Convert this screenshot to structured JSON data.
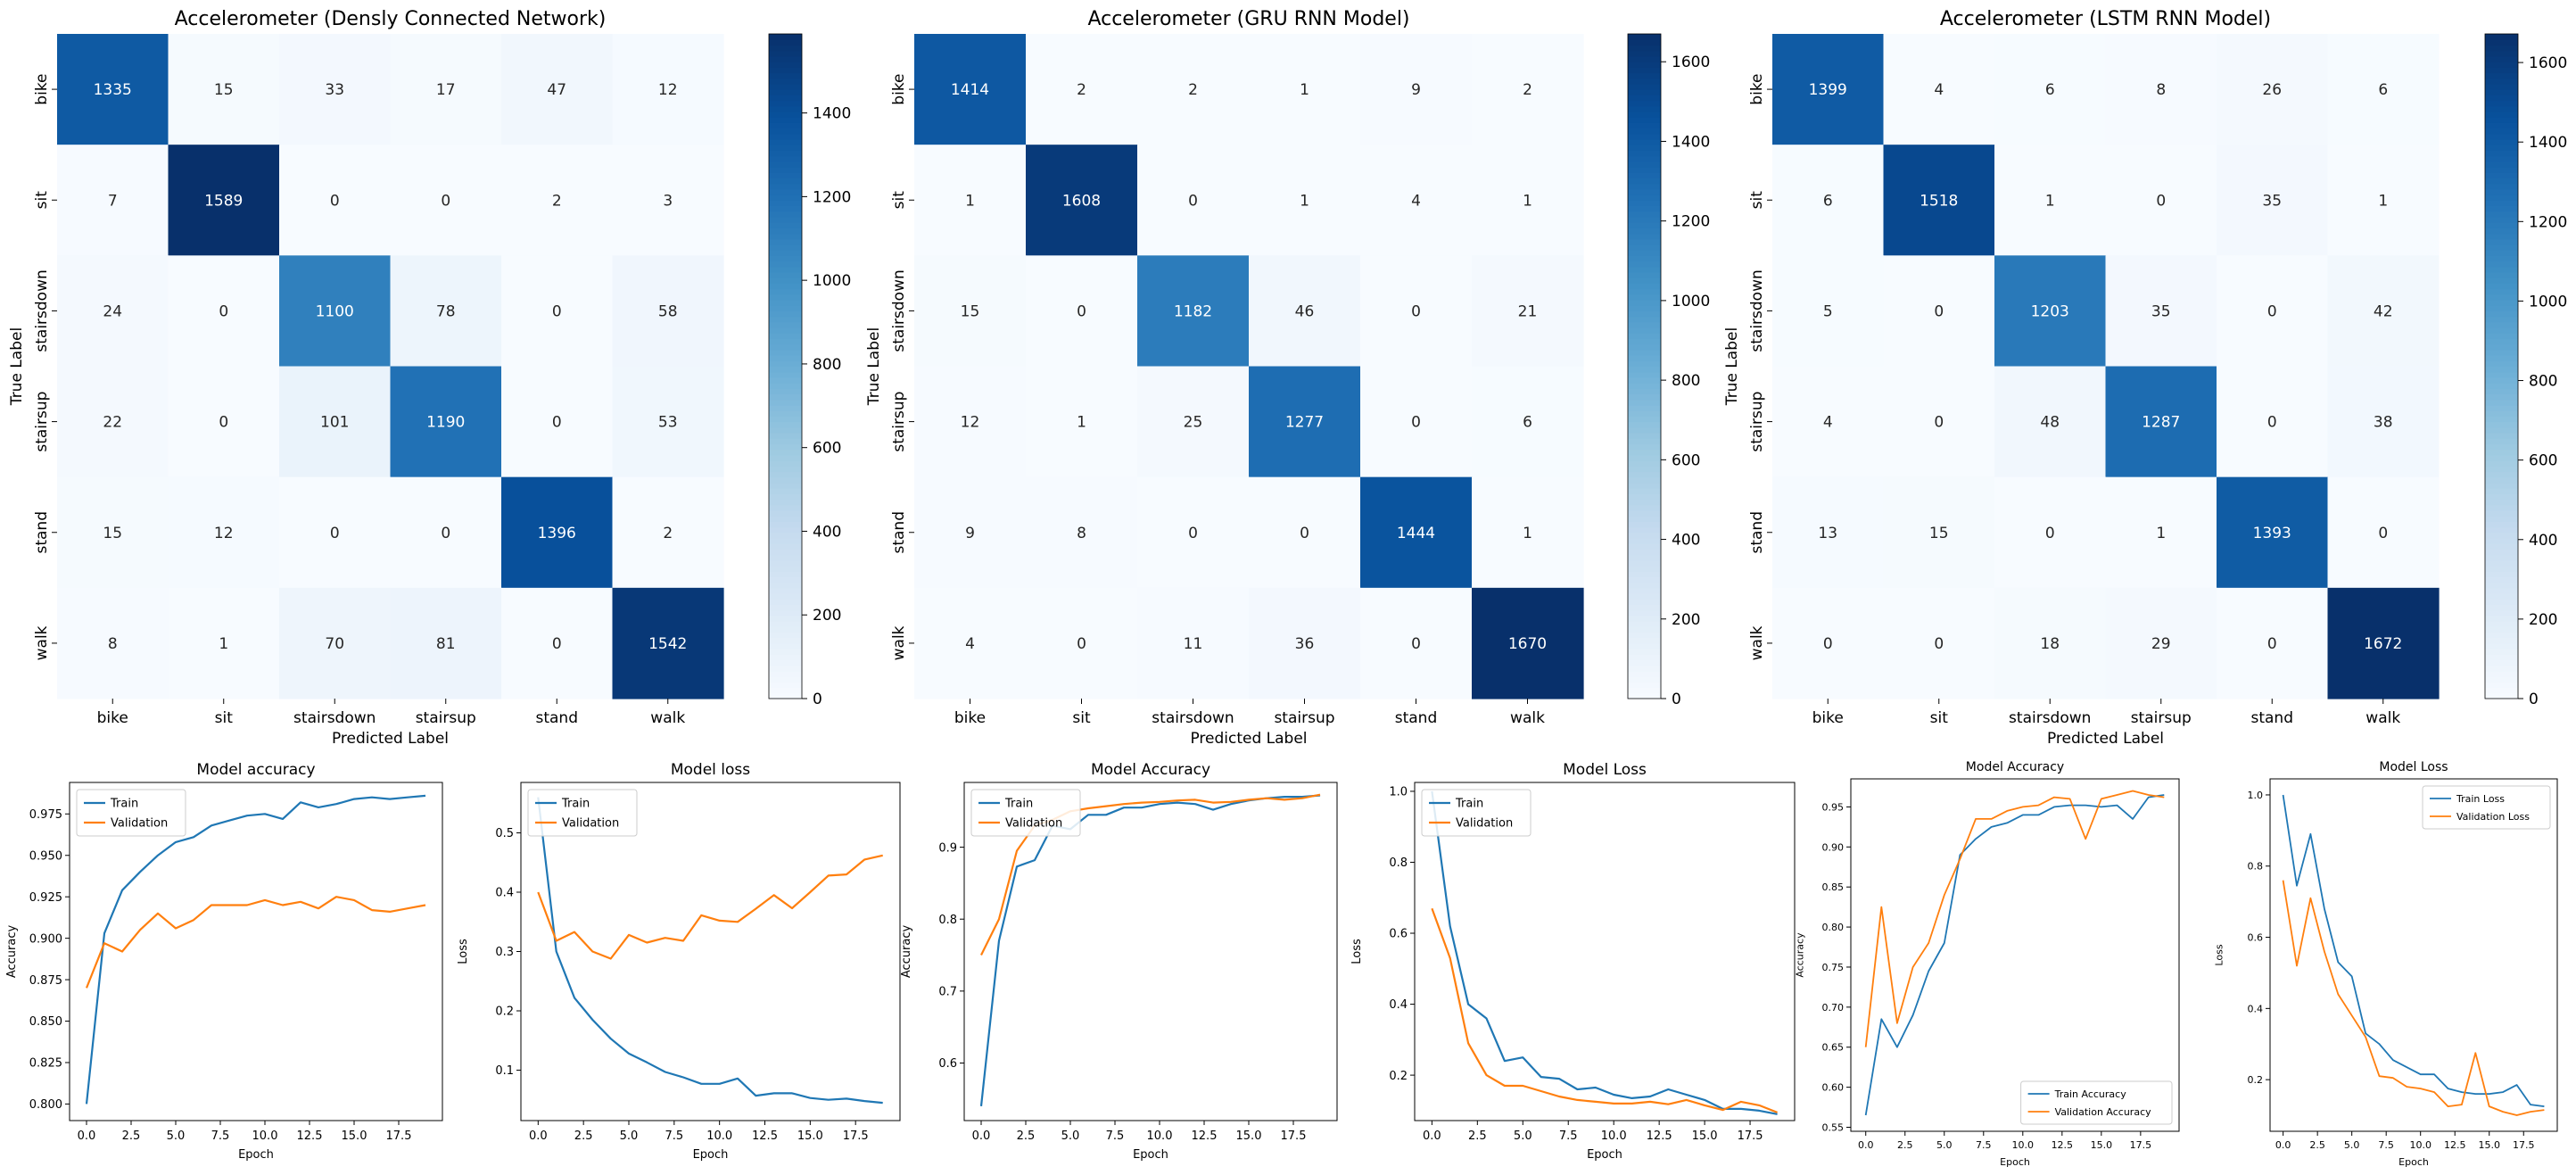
{
  "chart_data": [
    {
      "type": "heatmap",
      "title": "Accelerometer (Densly Connected Network)",
      "xlabel": "Predicted Label",
      "ylabel": "True Label",
      "labels": [
        "bike",
        "sit",
        "stairsdown",
        "stairsup",
        "stand",
        "walk"
      ],
      "matrix": [
        [
          1335,
          15,
          33,
          17,
          47,
          12
        ],
        [
          7,
          1589,
          0,
          0,
          2,
          3
        ],
        [
          24,
          0,
          1100,
          78,
          0,
          58
        ],
        [
          22,
          0,
          101,
          1190,
          0,
          53
        ],
        [
          15,
          12,
          0,
          0,
          1396,
          2
        ],
        [
          8,
          1,
          70,
          81,
          0,
          1542
        ]
      ],
      "colorbar": {
        "min": 0,
        "max": 1589,
        "ticks": [
          0,
          200,
          400,
          600,
          800,
          1000,
          1200,
          1400
        ]
      },
      "colormap": "Blues"
    },
    {
      "type": "heatmap",
      "title": "Accelerometer (GRU RNN Model)",
      "xlabel": "Predicted Label",
      "ylabel": "True Label",
      "labels": [
        "bike",
        "sit",
        "stairsdown",
        "stairsup",
        "stand",
        "walk"
      ],
      "matrix": [
        [
          1414,
          2,
          2,
          1,
          9,
          2
        ],
        [
          1,
          1608,
          0,
          1,
          4,
          1
        ],
        [
          15,
          0,
          1182,
          46,
          0,
          21
        ],
        [
          12,
          1,
          25,
          1277,
          0,
          6
        ],
        [
          9,
          8,
          0,
          0,
          1444,
          1
        ],
        [
          4,
          0,
          11,
          36,
          0,
          1670
        ]
      ],
      "colorbar": {
        "min": 0,
        "max": 1670,
        "ticks": [
          0,
          200,
          400,
          600,
          800,
          1000,
          1200,
          1400,
          1600
        ]
      },
      "colormap": "Blues"
    },
    {
      "type": "heatmap",
      "title": "Accelerometer (LSTM RNN Model)",
      "xlabel": "Predicted Label",
      "ylabel": "True Label",
      "labels": [
        "bike",
        "sit",
        "stairsdown",
        "stairsup",
        "stand",
        "walk"
      ],
      "matrix": [
        [
          1399,
          4,
          6,
          8,
          26,
          6
        ],
        [
          6,
          1518,
          1,
          0,
          35,
          1
        ],
        [
          5,
          0,
          1203,
          35,
          0,
          42
        ],
        [
          4,
          0,
          48,
          1287,
          0,
          38
        ],
        [
          13,
          15,
          0,
          1,
          1393,
          0
        ],
        [
          0,
          0,
          18,
          29,
          0,
          1672
        ]
      ],
      "colorbar": {
        "min": 0,
        "max": 1672,
        "ticks": [
          0,
          200,
          400,
          600,
          800,
          1000,
          1200,
          1400,
          1600
        ]
      },
      "colormap": "Blues"
    },
    {
      "type": "line",
      "title": "Model accuracy",
      "xlabel": "Epoch",
      "ylabel": "Accuracy",
      "xlim": [
        -0.95,
        19.95
      ],
      "ylim": [
        0.79,
        0.994
      ],
      "xticks": [
        0.0,
        2.5,
        5.0,
        7.5,
        10.0,
        12.5,
        15.0,
        17.5
      ],
      "xtick_labels": [
        "0.0",
        "2.5",
        "5.0",
        "7.5",
        "10.0",
        "12.5",
        "15.0",
        "17.5"
      ],
      "yticks": [
        0.8,
        0.825,
        0.85,
        0.875,
        0.9,
        0.925,
        0.95,
        0.975
      ],
      "ytick_labels": [
        "0.800",
        "0.825",
        "0.850",
        "0.875",
        "0.900",
        "0.925",
        "0.950",
        "0.975"
      ],
      "legend": "upper-left",
      "x": [
        0,
        1,
        2,
        3,
        4,
        5,
        6,
        7,
        8,
        9,
        10,
        11,
        12,
        13,
        14,
        15,
        16,
        17,
        18,
        19
      ],
      "series": [
        {
          "name": "Train",
          "color": "#1f77b4",
          "values": [
            0.8,
            0.903,
            0.929,
            0.94,
            0.95,
            0.958,
            0.961,
            0.968,
            0.971,
            0.974,
            0.975,
            0.972,
            0.982,
            0.979,
            0.981,
            0.984,
            0.985,
            0.984,
            0.985,
            0.986
          ]
        },
        {
          "name": "Validation",
          "color": "#ff7f0e",
          "values": [
            0.87,
            0.897,
            0.892,
            0.905,
            0.915,
            0.906,
            0.911,
            0.92,
            0.92,
            0.92,
            0.923,
            0.92,
            0.922,
            0.918,
            0.925,
            0.923,
            0.917,
            0.916,
            0.918,
            0.92
          ]
        }
      ]
    },
    {
      "type": "line",
      "title": "Model loss",
      "xlabel": "Epoch",
      "ylabel": "Loss",
      "xlim": [
        -0.95,
        19.95
      ],
      "ylim": [
        0.015,
        0.585
      ],
      "xticks": [
        0.0,
        2.5,
        5.0,
        7.5,
        10.0,
        12.5,
        15.0,
        17.5
      ],
      "xtick_labels": [
        "0.0",
        "2.5",
        "5.0",
        "7.5",
        "10.0",
        "12.5",
        "15.0",
        "17.5"
      ],
      "yticks": [
        0.1,
        0.2,
        0.3,
        0.4,
        0.5
      ],
      "ytick_labels": [
        "0.1",
        "0.2",
        "0.3",
        "0.4",
        "0.5"
      ],
      "legend": "upper-left",
      "x": [
        0,
        1,
        2,
        3,
        4,
        5,
        6,
        7,
        8,
        9,
        10,
        11,
        12,
        13,
        14,
        15,
        16,
        17,
        18,
        19
      ],
      "series": [
        {
          "name": "Train",
          "color": "#1f77b4",
          "values": [
            0.56,
            0.3,
            0.222,
            0.185,
            0.153,
            0.128,
            0.113,
            0.097,
            0.088,
            0.077,
            0.077,
            0.086,
            0.057,
            0.061,
            0.061,
            0.053,
            0.05,
            0.052,
            0.048,
            0.045
          ]
        },
        {
          "name": "Validation",
          "color": "#ff7f0e",
          "values": [
            0.4,
            0.318,
            0.333,
            0.3,
            0.288,
            0.328,
            0.315,
            0.323,
            0.318,
            0.361,
            0.352,
            0.35,
            0.372,
            0.395,
            0.373,
            0.4,
            0.428,
            0.43,
            0.455,
            0.462
          ]
        }
      ]
    },
    {
      "type": "line",
      "title": "Model Accuracy",
      "xlabel": "Epoch",
      "ylabel": "Accuracy",
      "xlim": [
        -0.95,
        19.95
      ],
      "ylim": [
        0.52,
        0.99
      ],
      "xticks": [
        0.0,
        2.5,
        5.0,
        7.5,
        10.0,
        12.5,
        15.0,
        17.5
      ],
      "xtick_labels": [
        "0.0",
        "2.5",
        "5.0",
        "7.5",
        "10.0",
        "12.5",
        "15.0",
        "17.5"
      ],
      "yticks": [
        0.6,
        0.7,
        0.8,
        0.9
      ],
      "ytick_labels": [
        "0.6",
        "0.7",
        "0.8",
        "0.9"
      ],
      "legend": "upper-left",
      "x": [
        0,
        1,
        2,
        3,
        4,
        5,
        6,
        7,
        8,
        9,
        10,
        11,
        12,
        13,
        14,
        15,
        16,
        17,
        18,
        19
      ],
      "series": [
        {
          "name": "Train",
          "color": "#1f77b4",
          "values": [
            0.54,
            0.77,
            0.873,
            0.882,
            0.93,
            0.925,
            0.945,
            0.945,
            0.955,
            0.955,
            0.96,
            0.962,
            0.96,
            0.952,
            0.96,
            0.965,
            0.968,
            0.97,
            0.97,
            0.972
          ]
        },
        {
          "name": "Validation",
          "color": "#ff7f0e",
          "values": [
            0.75,
            0.8,
            0.895,
            0.93,
            0.938,
            0.95,
            0.954,
            0.957,
            0.96,
            0.962,
            0.963,
            0.965,
            0.966,
            0.962,
            0.963,
            0.966,
            0.968,
            0.966,
            0.968,
            0.973
          ]
        }
      ]
    },
    {
      "type": "line",
      "title": "Model Loss",
      "xlabel": "Epoch",
      "ylabel": "Loss",
      "xlim": [
        -0.95,
        19.95
      ],
      "ylim": [
        0.072,
        1.025
      ],
      "xticks": [
        0.0,
        2.5,
        5.0,
        7.5,
        10.0,
        12.5,
        15.0,
        17.5
      ],
      "xtick_labels": [
        "0.0",
        "2.5",
        "5.0",
        "7.5",
        "10.0",
        "12.5",
        "15.0",
        "17.5"
      ],
      "yticks": [
        0.2,
        0.4,
        0.6,
        0.8,
        1.0
      ],
      "ytick_labels": [
        "0.2",
        "0.4",
        "0.6",
        "0.8",
        "1.0"
      ],
      "legend": "upper-left",
      "x": [
        0,
        1,
        2,
        3,
        4,
        5,
        6,
        7,
        8,
        9,
        10,
        11,
        12,
        13,
        14,
        15,
        16,
        17,
        18,
        19
      ],
      "series": [
        {
          "name": "Train",
          "color": "#1f77b4",
          "values": [
            1.0,
            0.62,
            0.4,
            0.36,
            0.24,
            0.25,
            0.195,
            0.19,
            0.16,
            0.165,
            0.145,
            0.135,
            0.14,
            0.16,
            0.145,
            0.13,
            0.105,
            0.105,
            0.1,
            0.09
          ]
        },
        {
          "name": "Validation",
          "color": "#ff7f0e",
          "values": [
            0.67,
            0.53,
            0.29,
            0.2,
            0.17,
            0.17,
            0.155,
            0.14,
            0.13,
            0.125,
            0.12,
            0.12,
            0.125,
            0.118,
            0.13,
            0.115,
            0.102,
            0.125,
            0.115,
            0.095
          ]
        }
      ]
    },
    {
      "type": "line",
      "title": "Model Accuracy",
      "xlabel": "Epoch",
      "ylabel": "Accuracy",
      "xlim": [
        -0.95,
        19.95
      ],
      "ylim": [
        0.545,
        0.985
      ],
      "xticks": [
        0.0,
        2.5,
        5.0,
        7.5,
        10.0,
        12.5,
        15.0,
        17.5
      ],
      "xtick_labels": [
        "0.0",
        "2.5",
        "5.0",
        "7.5",
        "10.0",
        "12.5",
        "15.0",
        "17.5"
      ],
      "yticks": [
        0.55,
        0.6,
        0.65,
        0.7,
        0.75,
        0.8,
        0.85,
        0.9,
        0.95
      ],
      "ytick_labels": [
        "0.55",
        "0.60",
        "0.65",
        "0.70",
        "0.75",
        "0.80",
        "0.85",
        "0.90",
        "0.95"
      ],
      "legend": "lower-right",
      "x": [
        0,
        1,
        2,
        3,
        4,
        5,
        6,
        7,
        8,
        9,
        10,
        11,
        12,
        13,
        14,
        15,
        16,
        17,
        18,
        19
      ],
      "series": [
        {
          "name": "Train Accuracy",
          "color": "#1f77b4",
          "values": [
            0.565,
            0.685,
            0.65,
            0.69,
            0.745,
            0.78,
            0.89,
            0.91,
            0.925,
            0.93,
            0.94,
            0.94,
            0.95,
            0.952,
            0.952,
            0.95,
            0.952,
            0.935,
            0.962,
            0.965
          ]
        },
        {
          "name": "Validation Accuracy",
          "color": "#ff7f0e",
          "values": [
            0.65,
            0.825,
            0.68,
            0.75,
            0.78,
            0.84,
            0.885,
            0.935,
            0.935,
            0.945,
            0.95,
            0.952,
            0.962,
            0.96,
            0.91,
            0.96,
            0.965,
            0.97,
            0.965,
            0.962
          ]
        }
      ]
    },
    {
      "type": "line",
      "title": "Model Loss",
      "xlabel": "Epoch",
      "ylabel": "Loss",
      "xlim": [
        -0.95,
        19.95
      ],
      "ylim": [
        0.055,
        1.045
      ],
      "xticks": [
        0.0,
        2.5,
        5.0,
        7.5,
        10.0,
        12.5,
        15.0,
        17.5
      ],
      "xtick_labels": [
        "0.0",
        "2.5",
        "5.0",
        "7.5",
        "10.0",
        "12.5",
        "15.0",
        "17.5"
      ],
      "yticks": [
        0.2,
        0.4,
        0.6,
        0.8,
        1.0
      ],
      "ytick_labels": [
        "0.2",
        "0.4",
        "0.6",
        "0.8",
        "1.0"
      ],
      "legend": "upper-right",
      "x": [
        0,
        1,
        2,
        3,
        4,
        5,
        6,
        7,
        8,
        9,
        10,
        11,
        12,
        13,
        14,
        15,
        16,
        17,
        18,
        19
      ],
      "series": [
        {
          "name": "Train Loss",
          "color": "#1f77b4",
          "values": [
            1.0,
            0.745,
            0.89,
            0.68,
            0.53,
            0.49,
            0.33,
            0.3,
            0.255,
            0.235,
            0.215,
            0.215,
            0.175,
            0.165,
            0.16,
            0.16,
            0.165,
            0.185,
            0.13,
            0.125
          ]
        },
        {
          "name": "Validation Loss",
          "color": "#ff7f0e",
          "values": [
            0.76,
            0.52,
            0.71,
            0.56,
            0.44,
            0.38,
            0.32,
            0.21,
            0.205,
            0.18,
            0.175,
            0.165,
            0.125,
            0.13,
            0.275,
            0.125,
            0.11,
            0.1,
            0.11,
            0.115
          ]
        }
      ]
    }
  ]
}
